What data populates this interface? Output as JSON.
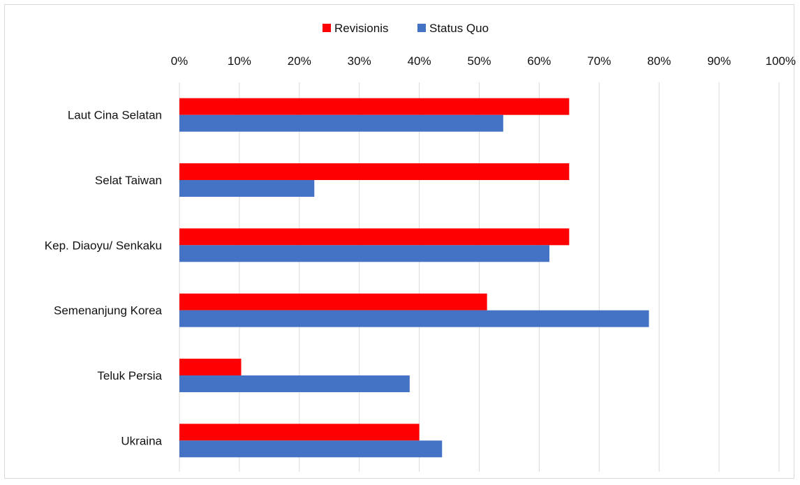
{
  "chart_data": {
    "type": "bar",
    "orientation": "horizontal",
    "categories": [
      "Laut Cina Selatan",
      "Selat Taiwan",
      "Kep. Diaoyu/ Senkaku",
      "Semenanjung Korea",
      "Teluk Persia",
      "Ukraina"
    ],
    "series": [
      {
        "name": "Revisionis",
        "color": "#ff0000",
        "values": [
          65,
          65,
          65,
          51.3,
          10.3,
          40
        ]
      },
      {
        "name": "Status Quo",
        "color": "#4472c4",
        "values": [
          54,
          22.5,
          61.7,
          78.3,
          38.4,
          43.8
        ]
      }
    ],
    "xlim": [
      0,
      100
    ],
    "x_ticks": [
      "0%",
      "10%",
      "20%",
      "30%",
      "40%",
      "50%",
      "60%",
      "70%",
      "80%",
      "90%",
      "100%"
    ],
    "x_axis_position": "top",
    "grid": true,
    "grid_color": "#d9d9d9",
    "legend_position": "top-center"
  }
}
